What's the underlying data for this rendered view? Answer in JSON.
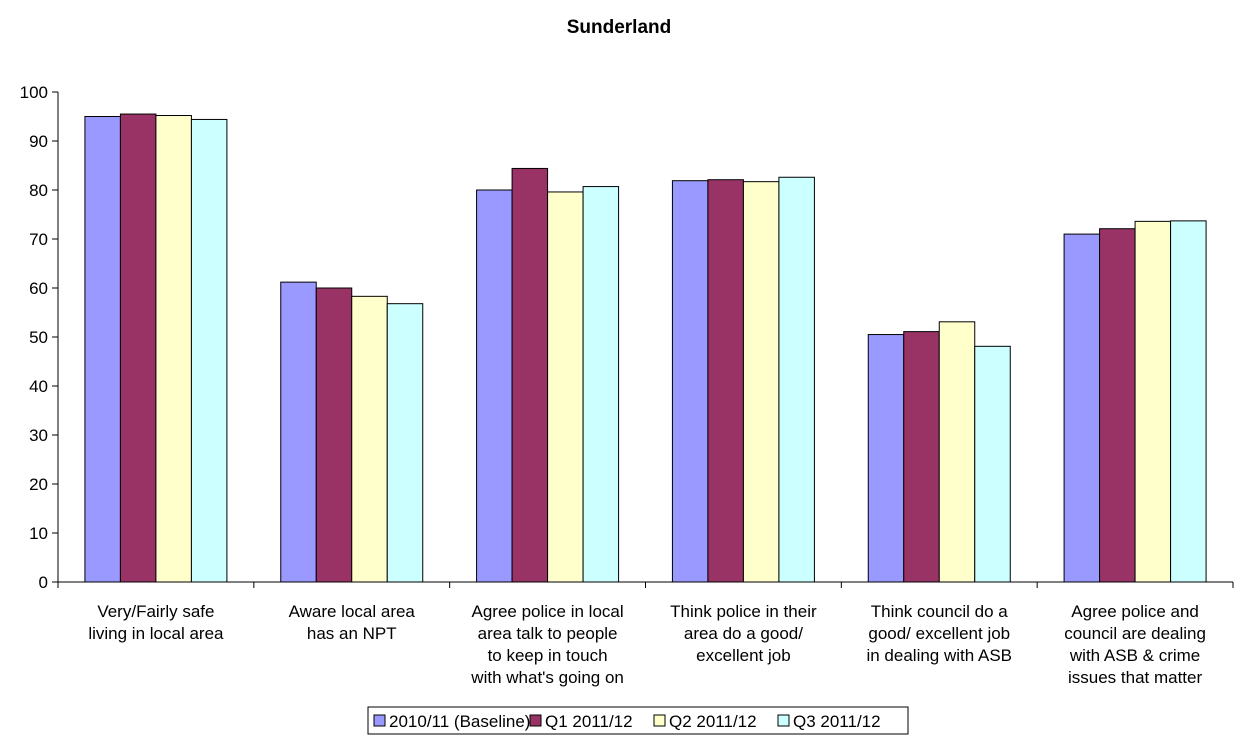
{
  "chart_data": {
    "type": "bar",
    "title": "Sunderland",
    "xlabel": "",
    "ylabel": "",
    "ylim": [
      0,
      100
    ],
    "yticks": [
      0,
      10,
      20,
      30,
      40,
      50,
      60,
      70,
      80,
      90,
      100
    ],
    "grid": false,
    "legend_position": "bottom",
    "categories": [
      [
        "Very/Fairly safe",
        "living in local area"
      ],
      [
        "Aware local area",
        "has an NPT"
      ],
      [
        "Agree police in local",
        "area talk to people",
        "to keep in touch",
        "with what's going on"
      ],
      [
        "Think police in their",
        "area do a good/",
        "excellent job"
      ],
      [
        "Think council do a",
        "good/ excellent job",
        "in dealing with ASB"
      ],
      [
        "Agree police and",
        "council are dealing",
        "with ASB & crime",
        "issues that matter"
      ]
    ],
    "series": [
      {
        "name": "2010/11 (Baseline)",
        "color": "#9999ff",
        "values": [
          95.0,
          61.2,
          80.0,
          81.9,
          50.5,
          71.0
        ]
      },
      {
        "name": "Q1 2011/12",
        "color": "#993366",
        "values": [
          95.5,
          60.0,
          84.4,
          82.1,
          51.1,
          72.1
        ]
      },
      {
        "name": "Q2 2011/12",
        "color": "#ffffcc",
        "values": [
          95.2,
          58.3,
          79.6,
          81.7,
          53.1,
          73.6
        ]
      },
      {
        "name": "Q3 2011/12",
        "color": "#ccffff",
        "values": [
          94.4,
          56.8,
          80.7,
          82.6,
          48.1,
          73.7
        ]
      }
    ]
  }
}
